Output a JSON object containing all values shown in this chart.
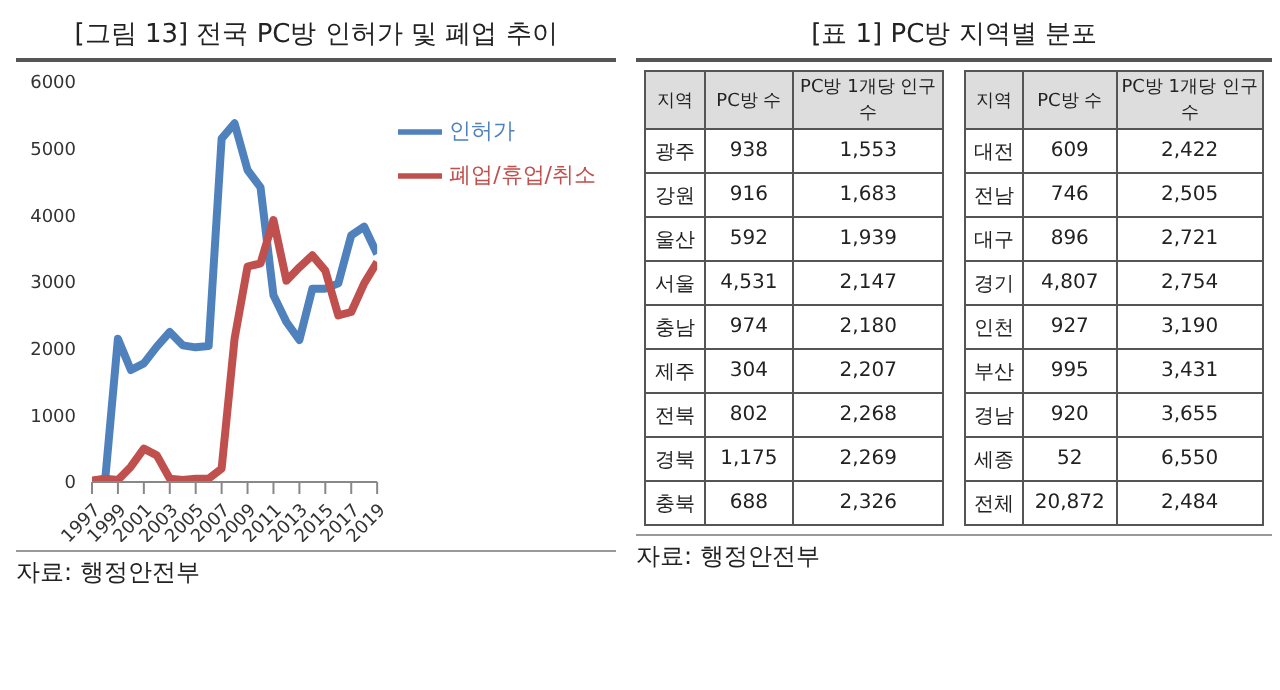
{
  "chart_data": [
    {
      "type": "line",
      "title": "[그림 13] 전국 PC방 인허가 및 폐업 추이",
      "x": [
        1997,
        1998,
        1999,
        2000,
        2001,
        2002,
        2003,
        2004,
        2005,
        2006,
        2007,
        2008,
        2009,
        2010,
        2011,
        2012,
        2013,
        2014,
        2015,
        2016,
        2017,
        2018,
        2019
      ],
      "series": [
        {
          "name": "인허가",
          "color": "#4f81bd",
          "values": [
            null,
            0,
            2150,
            1680,
            1780,
            2030,
            2250,
            2050,
            2020,
            2040,
            5150,
            5380,
            4680,
            4420,
            2800,
            2400,
            2130,
            2900,
            2900,
            2980,
            3700,
            3830,
            3420
          ]
        },
        {
          "name": "폐업/휴업/취소",
          "color": "#c0504d",
          "values": [
            20,
            50,
            30,
            230,
            500,
            400,
            50,
            30,
            50,
            50,
            200,
            2150,
            3230,
            3280,
            3930,
            3020,
            3220,
            3400,
            3170,
            2500,
            2550,
            2980,
            3300
          ]
        }
      ],
      "xlim": [
        1997,
        2019
      ],
      "xticks": [
        1997,
        1999,
        2001,
        2003,
        2005,
        2007,
        2009,
        2011,
        2013,
        2015,
        2017,
        2019
      ],
      "ylim": [
        0,
        6000
      ],
      "yticks": [
        0,
        1000,
        2000,
        3000,
        4000,
        5000,
        6000
      ],
      "legend": "top right",
      "marker": "none",
      "line_style": "solid",
      "annotations": [
        "자료: 행정안전부"
      ]
    },
    {
      "type": "other",
      "title": "[표 1] PC방 지역별 분포",
      "categories": [
        "지역",
        "PC방 수",
        "PC방 1개당 인구수",
        "지역",
        "PC방 수",
        "PC방 1개당 인구수"
      ],
      "cell_labels": [
        [
          "광주",
          "938",
          "1,553",
          "대전",
          "609",
          "2,422"
        ],
        [
          "강원",
          "916",
          "1,683",
          "전남",
          "746",
          "2,505"
        ],
        [
          "울산",
          "592",
          "1,939",
          "대구",
          "896",
          "2,721"
        ],
        [
          "서울",
          "4,531",
          "2,147",
          "경기",
          "4,807",
          "2,754"
        ],
        [
          "충남",
          "974",
          "2,180",
          "인천",
          "927",
          "3,190"
        ],
        [
          "제주",
          "304",
          "2,207",
          "부산",
          "995",
          "3,431"
        ],
        [
          "전북",
          "802",
          "2,268",
          "경남",
          "920",
          "3,655"
        ],
        [
          "경북",
          "1,175",
          "2,269",
          "세종",
          "52",
          "6,550"
        ],
        [
          "충북",
          "688",
          "2,326",
          "전체",
          "20,872",
          "2,484"
        ]
      ],
      "annotations": [
        "자료: 행정안전부"
      ]
    }
  ]
}
